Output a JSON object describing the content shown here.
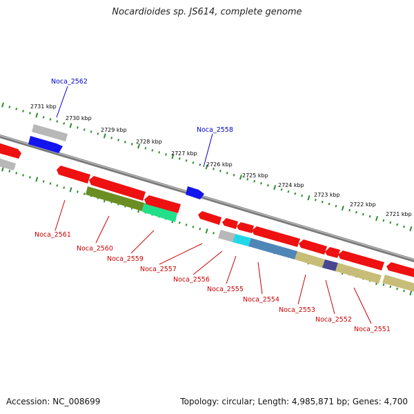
{
  "header": {
    "title": "Nocardioides sp. JS614, complete genome"
  },
  "footer": {
    "accession": "Accession: NC_008699",
    "topology": "Topology: circular; Length: 4,985,871 bp; Genes: 4,700"
  },
  "scale": {
    "unit": "kbp",
    "ticks": [
      {
        "label": "2731 kbp"
      },
      {
        "label": "2730 kbp"
      },
      {
        "label": "2729 kbp"
      },
      {
        "label": "2728 kbp"
      },
      {
        "label": "2727 kbp"
      },
      {
        "label": "2726 kbp"
      },
      {
        "label": "2725 kbp"
      },
      {
        "label": "2724 kbp"
      },
      {
        "label": "2723 kbp"
      },
      {
        "label": "2722 kbp"
      },
      {
        "label": "2721 kbp"
      }
    ]
  },
  "colors": {
    "forward_label": "#0000c8",
    "reverse_label": "#c80000",
    "cds_reverse": "#ee1111",
    "cds_forward": "#1010ee",
    "rna": "#b8b8b8",
    "backbone": "#7a7a7a",
    "tick_mark": "#2e8b2e",
    "domain_olive": "#6b8e23",
    "domain_green": "#22e08a",
    "domain_cyan": "#22d8e8",
    "domain_steel": "#4f86b8",
    "domain_khaki": "#c8bd78",
    "domain_navy": "#474790"
  },
  "genes": {
    "forward": [
      {
        "name": "Noca_2562"
      },
      {
        "name": "Noca_2558"
      }
    ],
    "reverse": [
      {
        "name": "Noca_2561"
      },
      {
        "name": "Noca_2560"
      },
      {
        "name": "Noca_2559"
      },
      {
        "name": "Noca_2557"
      },
      {
        "name": "Noca_2556"
      },
      {
        "name": "Noca_2555"
      },
      {
        "name": "Noca_2554"
      },
      {
        "name": "Noca_2553"
      },
      {
        "name": "Noca_2552"
      },
      {
        "name": "Noca_2551"
      }
    ]
  }
}
